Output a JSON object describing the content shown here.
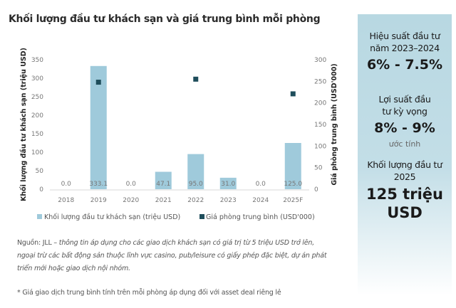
{
  "chart_data": {
    "type": "bar+scatter",
    "title": "Khối lượng đầu tư khách sạn và giá trung bình mỗi phòng",
    "categories": [
      "2018",
      "2019",
      "2020",
      "2021",
      "2022",
      "2023",
      "2024",
      "2025F"
    ],
    "series": [
      {
        "name": "Khối lượng đầu tư khách sạn (triệu USD)",
        "type": "bar",
        "axis": "left",
        "color": "#9fcadb",
        "values": [
          0.0,
          333.1,
          0.0,
          47.1,
          95.0,
          31.0,
          0.0,
          125.0
        ],
        "labels": [
          "0.0",
          "333.1",
          "0.0",
          "47.1",
          "95.0",
          "31.0",
          "0.0",
          "125.0"
        ]
      },
      {
        "name": "Giá phòng trung bình (USD'000)",
        "type": "scatter",
        "axis": "right",
        "color": "#1e4d5b",
        "values": [
          null,
          248,
          null,
          null,
          255,
          null,
          null,
          221
        ]
      }
    ],
    "ylabel": "Khối lượng đầu tư khách sạn  (triệu USD)",
    "y2label": "Giá phòng trung bình  (USD'000)",
    "ylim": [
      0,
      350
    ],
    "y2lim": [
      0,
      300
    ],
    "yticks": [
      "0",
      "50",
      "100",
      "150",
      "200",
      "250",
      "300",
      "350"
    ],
    "y2ticks": [
      "0",
      "50",
      "100",
      "150",
      "200",
      "250",
      "300"
    ],
    "grid": false,
    "legend": "bottom"
  },
  "notes": {
    "source_prefix": "Nguồn: JLL – ",
    "source_text": "thông tin áp dụng cho các giao dịch khách sạn có giá trị từ 5 triệu USD trở lên, ngoại trừ các bất động sản thuộc lĩnh vực casino, pub/leisure có giấy phép đặc biệt, dự án phát triển mới hoặc giao dịch nội nhóm.",
    "footnote": "* Giá giao dịch trung bình tính trên mỗi phòng áp dụng đối với asset deal riêng lẻ"
  },
  "panel": {
    "stat1_label": "Hiệu suất đầu tư năm 2023–2024",
    "stat1_value": "6% - 7.5%",
    "stat2_label": "Lợi suất đầu tư kỳ vọng",
    "stat2_value": "8% - 9%",
    "stat2_sub": "ước tính",
    "stat3_label": "Khối lượng đầu tư 2025",
    "stat3_value": "125 triệu USD"
  }
}
